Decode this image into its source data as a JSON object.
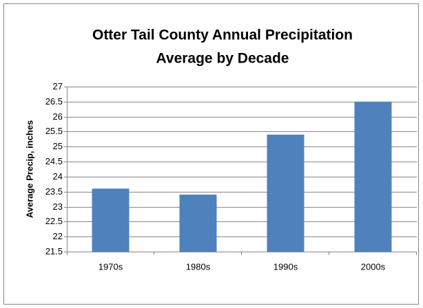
{
  "chart_data": {
    "type": "bar",
    "title": [
      "Otter Tail County Annual Precipitation",
      "Average by Decade"
    ],
    "y_label": "Average Precip, inches",
    "categories": [
      "1970s",
      "1980s",
      "1990s",
      "2000s"
    ],
    "values": [
      23.6,
      23.4,
      25.4,
      26.5
    ],
    "color": "#4f81bd",
    "ylim": [
      21.5,
      27
    ],
    "yticks": [
      21.5,
      22,
      22.5,
      23,
      23.5,
      24,
      24.5,
      25,
      25.5,
      26,
      26.5,
      27
    ],
    "grid": true
  }
}
